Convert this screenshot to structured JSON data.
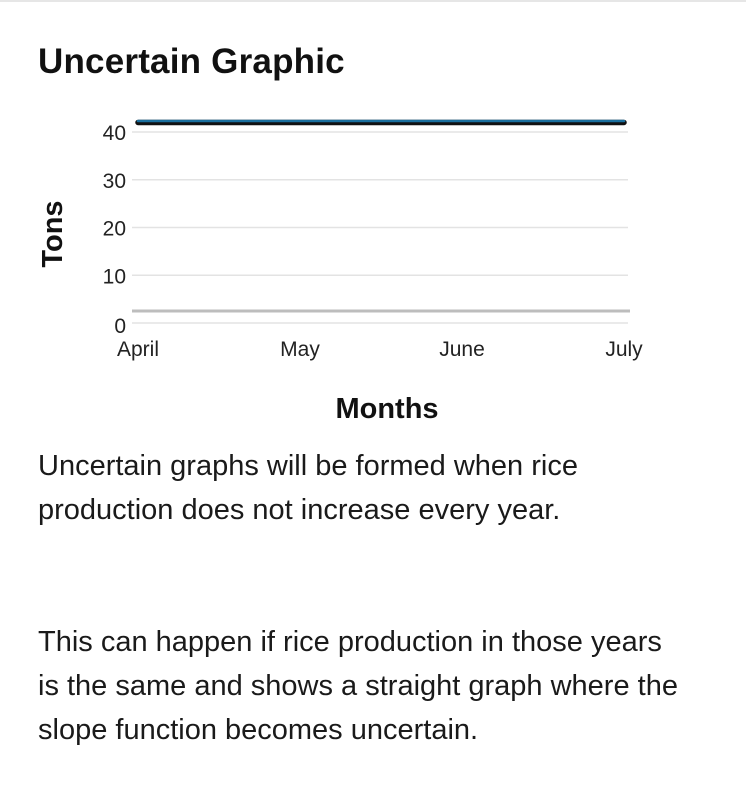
{
  "title": "Uncertain Graphic",
  "chart_data": {
    "type": "line",
    "categories": [
      "April",
      "May",
      "June",
      "July"
    ],
    "series": [
      {
        "values": [
          42,
          42,
          42,
          42
        ],
        "color": "#1a6f9e"
      }
    ],
    "yticks": [
      0,
      10,
      20,
      30,
      40
    ],
    "ylim": [
      0,
      42
    ],
    "xlabel": "Months",
    "ylabel": "Tons",
    "grid": true
  },
  "paragraphs": [
    "Uncertain graphs will be formed when rice production does not increase every year.",
    "This can happen if rice production in those years is the same and shows a straight graph where the slope function becomes uncertain."
  ]
}
